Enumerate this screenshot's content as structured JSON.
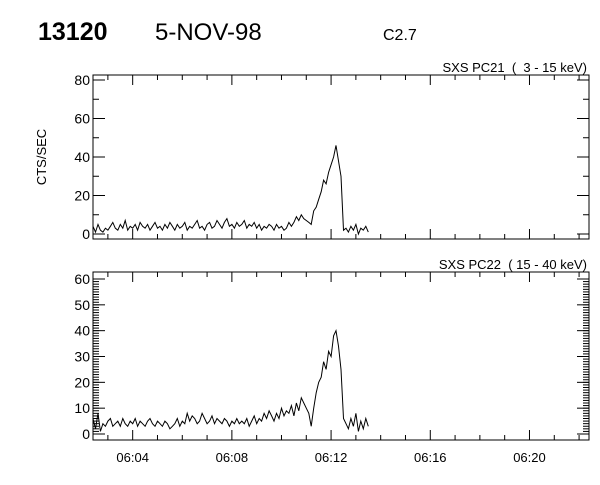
{
  "header": {
    "event_id": "13120",
    "date": "5-NOV-98",
    "flare_class": "C2.7"
  },
  "chart_data": [
    {
      "type": "line",
      "title": "SXS PC21  (  3 - 15 keV)",
      "ylabel": "CTS/SEC",
      "xlabel": "",
      "ylim": [
        0,
        80
      ],
      "yticks": [
        "0",
        "20",
        "40",
        "60",
        "80"
      ],
      "xlim": [
        "06:02:24",
        "06:22:24"
      ],
      "xticks": [
        "06:04",
        "06:08",
        "06:12",
        "06:16",
        "06:20"
      ],
      "x_start": "06:02:24",
      "cadence_s": 6,
      "values": [
        4,
        1,
        5,
        2,
        1,
        3,
        2,
        4,
        6,
        3,
        2,
        5,
        3,
        7,
        2,
        4,
        3,
        5,
        2,
        6,
        4,
        3,
        5,
        2,
        4,
        6,
        3,
        4,
        2,
        5,
        3,
        6,
        4,
        2,
        5,
        3,
        4,
        6,
        2,
        4,
        3,
        5,
        7,
        3,
        4,
        2,
        5,
        6,
        3,
        4,
        7,
        5,
        3,
        6,
        8,
        4,
        5,
        3,
        6,
        4,
        5,
        7,
        3,
        5,
        4,
        6,
        3,
        5,
        2,
        4,
        3,
        5,
        4,
        2,
        5,
        3,
        4,
        2,
        3,
        6,
        4,
        6,
        9,
        7,
        10,
        8,
        7,
        6,
        5,
        12,
        14,
        18,
        22,
        28,
        26,
        32,
        36,
        40,
        46,
        38,
        30,
        2,
        3,
        1,
        4,
        2,
        5,
        0,
        3,
        2,
        4,
        1
      ]
    },
    {
      "type": "line",
      "title": "SXS PC22  ( 15 - 40 keV)",
      "ylabel": "",
      "xlabel": "",
      "ylim": [
        0,
        60
      ],
      "yticks": [
        "0",
        "10",
        "20",
        "30",
        "40",
        "50",
        "60"
      ],
      "xlim": [
        "06:02:24",
        "06:22:24"
      ],
      "xticks": [
        "06:04",
        "06:08",
        "06:12",
        "06:16",
        "06:20"
      ],
      "x_start": "06:02:24",
      "cadence_s": 6,
      "values": [
        6,
        2,
        8,
        1,
        4,
        3,
        5,
        6,
        3,
        4,
        5,
        3,
        6,
        4,
        3,
        5,
        4,
        6,
        3,
        5,
        4,
        3,
        5,
        6,
        4,
        3,
        5,
        4,
        3,
        5,
        4,
        2,
        3,
        4,
        6,
        3,
        5,
        4,
        8,
        5,
        7,
        6,
        4,
        5,
        8,
        6,
        4,
        5,
        7,
        4,
        6,
        5,
        4,
        6,
        5,
        3,
        5,
        4,
        6,
        4,
        5,
        4,
        6,
        3,
        5,
        7,
        4,
        6,
        5,
        8,
        6,
        9,
        7,
        5,
        8,
        6,
        10,
        7,
        9,
        8,
        11,
        7,
        12,
        9,
        14,
        12,
        10,
        8,
        3,
        10,
        16,
        20,
        22,
        28,
        25,
        32,
        30,
        38,
        40,
        34,
        25,
        6,
        4,
        2,
        6,
        3,
        8,
        1,
        5,
        2,
        6,
        3
      ]
    }
  ]
}
